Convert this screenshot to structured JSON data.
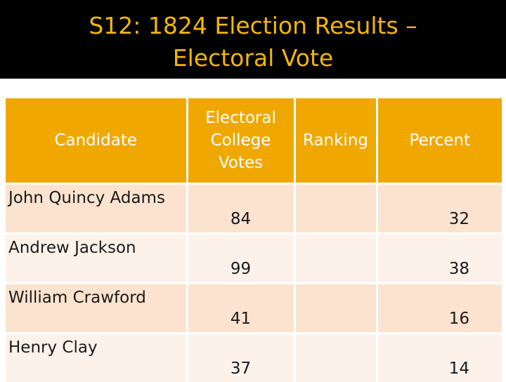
{
  "slide": {
    "title_line1": "S12: 1824 Election Results –",
    "title_line2": "Electoral Vote"
  },
  "table": {
    "headers": {
      "candidate": "Candidate",
      "votes_line1": "Electoral",
      "votes_line2": "College",
      "votes_line3": "Votes",
      "ranking": "Ranking",
      "percent": "Percent"
    },
    "rows": [
      {
        "candidate": "John Quincy Adams",
        "votes": "84",
        "ranking": "",
        "percent": "32"
      },
      {
        "candidate": "Andrew Jackson",
        "votes": "99",
        "ranking": "",
        "percent": "38"
      },
      {
        "candidate": "William Crawford",
        "votes": "41",
        "ranking": "",
        "percent": "16"
      },
      {
        "candidate": "Henry Clay",
        "votes": "37",
        "ranking": "",
        "percent": "14"
      }
    ]
  },
  "colors": {
    "title": "#f2b705",
    "header_bg": "#f0a800",
    "row_odd": "#fbe3cf",
    "row_even": "#fdf2ea"
  }
}
